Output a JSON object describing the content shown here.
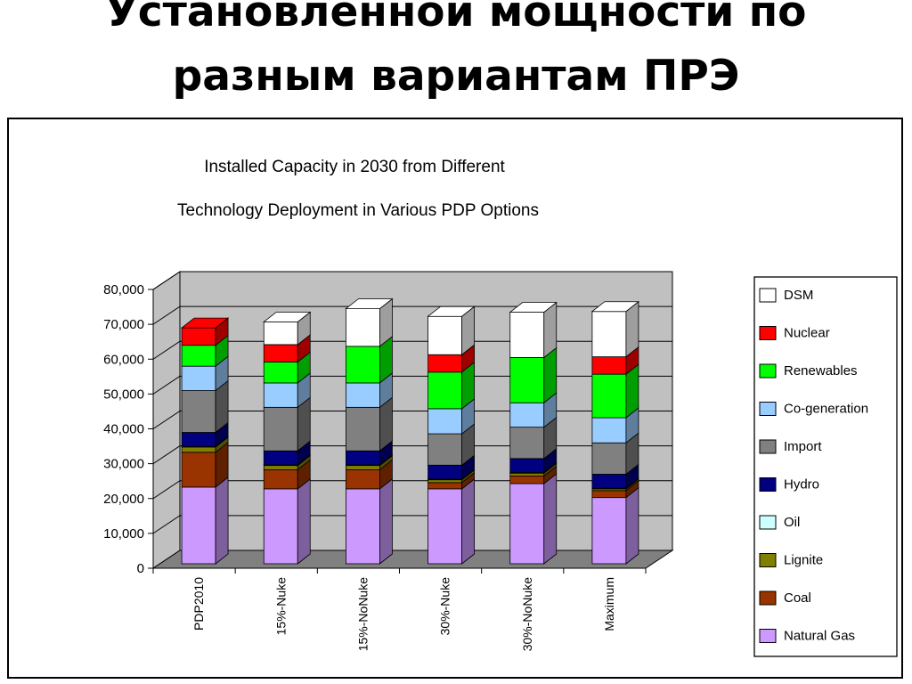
{
  "slide": {
    "title_line1": "Установленной мощности по",
    "title_line2": "разным вариантам ПРЭ"
  },
  "chart_data": {
    "type": "bar",
    "stacked": true,
    "three_d": true,
    "title_line1": "Installed Capacity in 2030 from Different",
    "title_line2": "Technology Deployment in Various PDP Options",
    "xlabel": "",
    "ylabel": "",
    "ylim": [
      0,
      80000
    ],
    "yticks": [
      "0",
      "10,000",
      "20,000",
      "30,000",
      "40,000",
      "50,000",
      "60,000",
      "70,000",
      "80,000"
    ],
    "grid": true,
    "legend_position": "right",
    "categories": [
      "PDP2010",
      "15%-Nuke",
      "15%-NoNuke",
      "30%-Nuke",
      "30%-NoNuke",
      "Maximum"
    ],
    "series": [
      {
        "name": "Natural Gas",
        "color": "#cc99ff",
        "values": [
          22000,
          21500,
          21500,
          21500,
          23000,
          19000
        ]
      },
      {
        "name": "Coal",
        "color": "#993300",
        "values": [
          10000,
          5500,
          5500,
          1800,
          2200,
          2000
        ]
      },
      {
        "name": "Lignite",
        "color": "#808000",
        "values": [
          1500,
          1200,
          1200,
          800,
          800,
          500
        ]
      },
      {
        "name": "Oil",
        "color": "#ccffff",
        "values": [
          200,
          200,
          200,
          200,
          200,
          200
        ]
      },
      {
        "name": "Hydro",
        "color": "#000080",
        "values": [
          4000,
          4000,
          4000,
          4000,
          4000,
          4000
        ]
      },
      {
        "name": "Import",
        "color": "#808080",
        "values": [
          12000,
          12500,
          12500,
          9000,
          9000,
          9000
        ]
      },
      {
        "name": "Co-generation",
        "color": "#99ccff",
        "values": [
          7000,
          7000,
          7000,
          7200,
          7000,
          7200
        ]
      },
      {
        "name": "Renewables",
        "color": "#00ff00",
        "values": [
          6000,
          6000,
          10500,
          10500,
          13000,
          12500
        ]
      },
      {
        "name": "Nuclear",
        "color": "#ff0000",
        "values": [
          5000,
          5000,
          0,
          5000,
          0,
          5000
        ]
      },
      {
        "name": "DSM",
        "color": "#ffffff",
        "values": [
          0,
          6500,
          10800,
          11000,
          13000,
          13000
        ]
      }
    ]
  }
}
